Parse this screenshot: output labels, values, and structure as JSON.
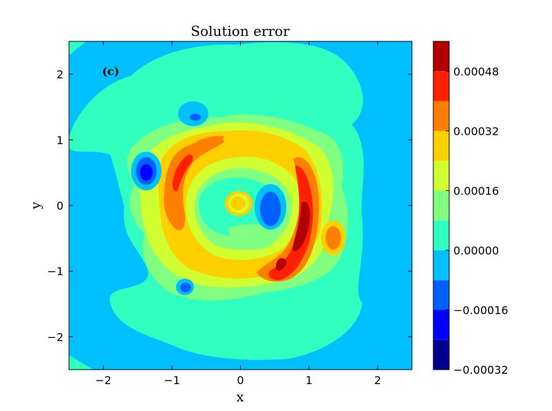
{
  "chart_data": {
    "type": "heatmap",
    "subtype": "filled-contour",
    "title": "Solution error",
    "xlabel": "x",
    "ylabel": "y",
    "panel_label": "(c)",
    "xlim": [
      -2.5,
      2.5
    ],
    "ylim": [
      -2.5,
      2.5
    ],
    "xticks": [
      -2,
      -1,
      0,
      1,
      2
    ],
    "yticks": [
      -2,
      -1,
      0,
      1,
      2
    ],
    "grid": false,
    "colormap": "jet",
    "colorbar": {
      "levels": [
        -0.00032,
        -0.00024,
        -0.00016,
        -8e-05,
        0.0,
        8e-05,
        0.00016,
        0.00024,
        0.00032,
        0.0004,
        0.00048,
        0.00056
      ],
      "colors": [
        "#00008f",
        "#0000ff",
        "#0060ff",
        "#00c0ff",
        "#30ffc0",
        "#80ff80",
        "#cfff30",
        "#ffd000",
        "#ff8000",
        "#ff2000",
        "#b00000"
      ],
      "tick_labels": [
        "−0.00032",
        "−0.00016",
        "0.00000",
        "0.00016",
        "0.00032",
        "0.00048"
      ],
      "tick_values": [
        -0.00032,
        -0.00016,
        0.0,
        0.00016,
        0.00032,
        0.00048
      ]
    },
    "features": [
      {
        "kind": "peak",
        "x": 0.9,
        "y": -0.3,
        "value": 0.00054
      },
      {
        "kind": "peak",
        "x": 0.55,
        "y": -1.0,
        "value": 0.00046
      },
      {
        "kind": "peak",
        "x": -0.9,
        "y": 0.5,
        "value": 0.00044
      },
      {
        "kind": "peak",
        "x": -0.4,
        "y": 0.9,
        "value": 0.0003
      },
      {
        "kind": "peak",
        "x": 1.35,
        "y": -0.5,
        "value": 0.0004
      },
      {
        "kind": "peak",
        "x": 0.0,
        "y": 0.0,
        "value": 0.0003
      },
      {
        "kind": "trough",
        "x": -1.37,
        "y": 0.45,
        "value": -0.00022
      },
      {
        "kind": "trough",
        "x": 0.42,
        "y": -0.1,
        "value": -0.00018
      },
      {
        "kind": "trough",
        "x": -0.65,
        "y": 1.3,
        "value": -0.00015
      },
      {
        "kind": "trough",
        "x": -0.8,
        "y": -1.25,
        "value": -0.00015
      }
    ]
  }
}
